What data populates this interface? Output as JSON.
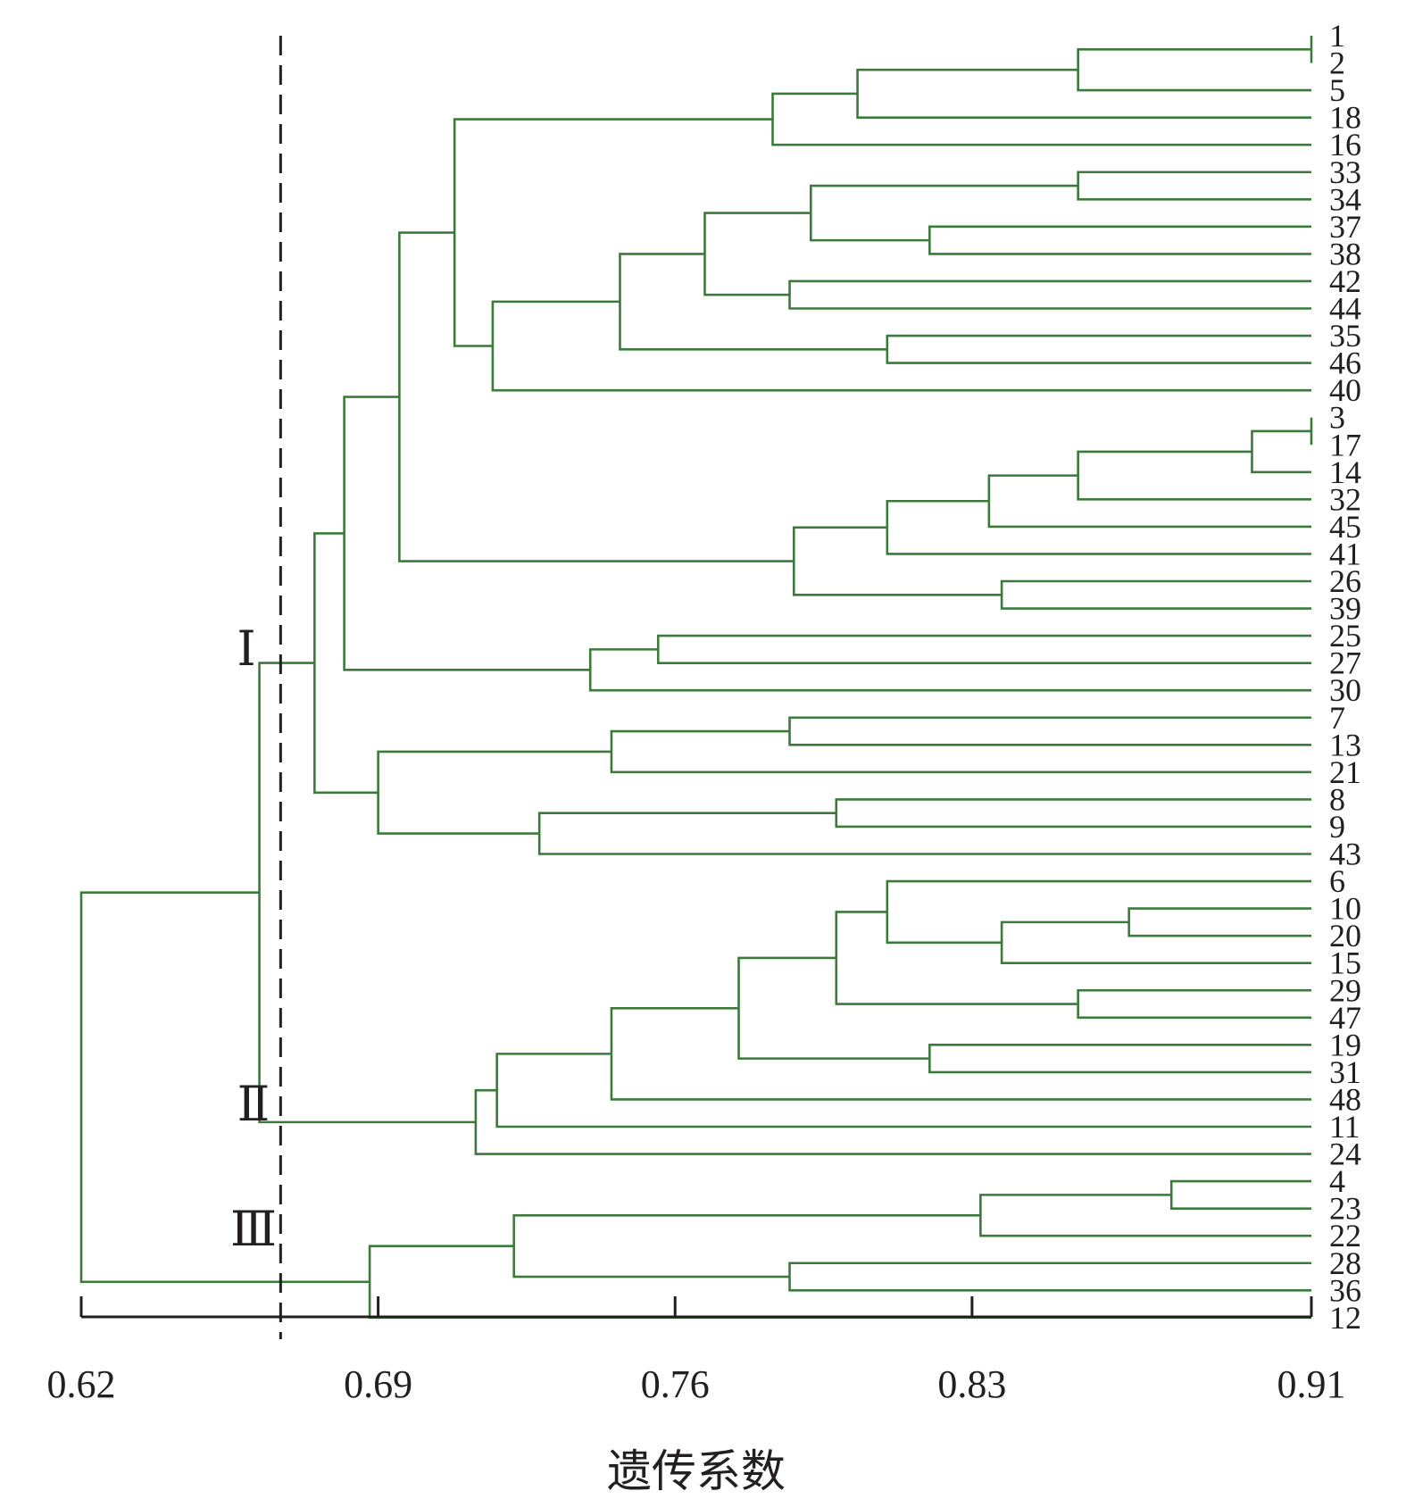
{
  "chart_data": {
    "type": "dendrogram",
    "title": "",
    "orientation": "leaves-right",
    "xlabel": "遗传系数",
    "xlim": [
      0.62,
      0.91
    ],
    "ticks": [
      0.62,
      0.69,
      0.76,
      0.83,
      0.91
    ],
    "tick_labels": [
      "0.62",
      "0.69",
      "0.76",
      "0.83",
      "0.91"
    ],
    "cutoff": 0.667,
    "colors": {
      "branch": "#3c7a3c",
      "text": "#231f20"
    },
    "leaves": [
      "1",
      "2",
      "5",
      "18",
      "16",
      "33",
      "34",
      "37",
      "38",
      "42",
      "44",
      "35",
      "46",
      "40",
      "3",
      "17",
      "14",
      "32",
      "45",
      "41",
      "26",
      "39",
      "25",
      "27",
      "30",
      "7",
      "13",
      "21",
      "8",
      "9",
      "43",
      "6",
      "10",
      "20",
      "15",
      "29",
      "47",
      "19",
      "31",
      "48",
      "11",
      "24",
      "4",
      "23",
      "22",
      "28",
      "36",
      "12"
    ],
    "merges": [
      {
        "id": "m1",
        "sim": 0.91,
        "children": [
          "1",
          "2"
        ]
      },
      {
        "id": "m2",
        "sim": 0.855,
        "children": [
          "m1",
          "5"
        ]
      },
      {
        "id": "m3",
        "sim": 0.803,
        "children": [
          "m2",
          "18"
        ]
      },
      {
        "id": "m4",
        "sim": 0.783,
        "children": [
          "m3",
          "16"
        ]
      },
      {
        "id": "m5",
        "sim": 0.855,
        "children": [
          "33",
          "34"
        ]
      },
      {
        "id": "m6",
        "sim": 0.82,
        "children": [
          "37",
          "38"
        ]
      },
      {
        "id": "m7",
        "sim": 0.792,
        "children": [
          "m5",
          "m6"
        ]
      },
      {
        "id": "m8",
        "sim": 0.787,
        "children": [
          "42",
          "44"
        ]
      },
      {
        "id": "m9",
        "sim": 0.767,
        "children": [
          "m7",
          "m8"
        ]
      },
      {
        "id": "m10",
        "sim": 0.81,
        "children": [
          "35",
          "46"
        ]
      },
      {
        "id": "m11",
        "sim": 0.747,
        "children": [
          "m9",
          "m10"
        ]
      },
      {
        "id": "m12",
        "sim": 0.717,
        "children": [
          "m11",
          "40"
        ]
      },
      {
        "id": "m13",
        "sim": 0.708,
        "children": [
          "m4",
          "m12"
        ]
      },
      {
        "id": "m14",
        "sim": 0.91,
        "children": [
          "3",
          "17"
        ]
      },
      {
        "id": "m15",
        "sim": 0.896,
        "children": [
          "m14",
          "14"
        ]
      },
      {
        "id": "m16",
        "sim": 0.855,
        "children": [
          "m15",
          "32"
        ]
      },
      {
        "id": "m17",
        "sim": 0.834,
        "children": [
          "m16",
          "45"
        ]
      },
      {
        "id": "m18",
        "sim": 0.81,
        "children": [
          "m17",
          "41"
        ]
      },
      {
        "id": "m19",
        "sim": 0.837,
        "children": [
          "26",
          "39"
        ]
      },
      {
        "id": "m20",
        "sim": 0.788,
        "children": [
          "m18",
          "m19"
        ]
      },
      {
        "id": "m21",
        "sim": 0.695,
        "children": [
          "m13",
          "m20"
        ]
      },
      {
        "id": "m22",
        "sim": 0.756,
        "children": [
          "25",
          "27"
        ]
      },
      {
        "id": "m23",
        "sim": 0.74,
        "children": [
          "m22",
          "30"
        ]
      },
      {
        "id": "m24",
        "sim": 0.682,
        "children": [
          "m21",
          "m23"
        ]
      },
      {
        "id": "m25",
        "sim": 0.787,
        "children": [
          "7",
          "13"
        ]
      },
      {
        "id": "m26",
        "sim": 0.745,
        "children": [
          "m25",
          "21"
        ]
      },
      {
        "id": "m27",
        "sim": 0.798,
        "children": [
          "8",
          "9"
        ]
      },
      {
        "id": "m28",
        "sim": 0.728,
        "children": [
          "m27",
          "43"
        ]
      },
      {
        "id": "m29",
        "sim": 0.69,
        "children": [
          "m26",
          "m28"
        ]
      },
      {
        "id": "m30",
        "sim": 0.675,
        "children": [
          "m24",
          "m29"
        ]
      },
      {
        "id": "m31",
        "sim": 0.867,
        "children": [
          "10",
          "20"
        ]
      },
      {
        "id": "m32",
        "sim": 0.837,
        "children": [
          "m31",
          "15"
        ]
      },
      {
        "id": "m33",
        "sim": 0.81,
        "children": [
          "6",
          "m32"
        ]
      },
      {
        "id": "m34",
        "sim": 0.855,
        "children": [
          "29",
          "47"
        ]
      },
      {
        "id": "m35",
        "sim": 0.798,
        "children": [
          "m33",
          "m34"
        ]
      },
      {
        "id": "m36",
        "sim": 0.82,
        "children": [
          "19",
          "31"
        ]
      },
      {
        "id": "m37",
        "sim": 0.775,
        "children": [
          "m35",
          "m36"
        ]
      },
      {
        "id": "m38",
        "sim": 0.745,
        "children": [
          "m37",
          "48"
        ]
      },
      {
        "id": "m39",
        "sim": 0.718,
        "children": [
          "m38",
          "11"
        ]
      },
      {
        "id": "m40",
        "sim": 0.713,
        "children": [
          "m39",
          "24"
        ]
      },
      {
        "id": "m41",
        "sim": 0.662,
        "children": [
          "m30",
          "m40"
        ]
      },
      {
        "id": "m42",
        "sim": 0.877,
        "children": [
          "4",
          "23"
        ]
      },
      {
        "id": "m43",
        "sim": 0.832,
        "children": [
          "m42",
          "22"
        ]
      },
      {
        "id": "m44",
        "sim": 0.787,
        "children": [
          "28",
          "36"
        ]
      },
      {
        "id": "m45",
        "sim": 0.722,
        "children": [
          "m43",
          "m44"
        ]
      },
      {
        "id": "m46",
        "sim": 0.688,
        "children": [
          "m45",
          "12"
        ]
      },
      {
        "id": "m47",
        "sim": 0.62,
        "children": [
          "m41",
          "m46"
        ]
      }
    ],
    "clusters": [
      {
        "label": "Ⅰ",
        "leaves_from": "1",
        "leaves_to": "43"
      },
      {
        "label": "Ⅱ",
        "leaves_from": "6",
        "leaves_to": "24"
      },
      {
        "label": "Ⅲ",
        "leaves_from": "4",
        "leaves_to": "12"
      }
    ]
  }
}
